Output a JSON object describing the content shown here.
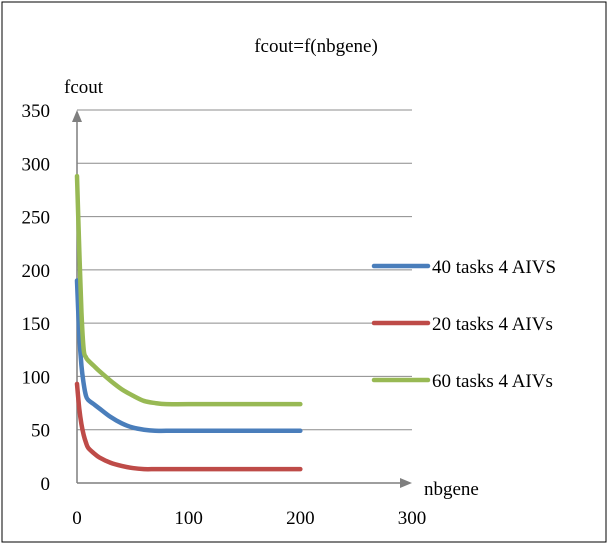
{
  "chart_data": {
    "type": "line",
    "title": "fcout=f(nbgene)",
    "xlabel": "nbgene",
    "ylabel": "fcout",
    "xlim": [
      0,
      300
    ],
    "ylim": [
      0,
      350
    ],
    "x_ticks": [
      "0",
      "100",
      "200",
      "300"
    ],
    "y_ticks": [
      "0",
      "50",
      "100",
      "150",
      "200",
      "250",
      "300",
      "350"
    ],
    "grid": "horizontal",
    "legend_position": "right",
    "series": [
      {
        "name": "40 tasks 4 AIVS",
        "color": "#4a7ebb",
        "x": [
          0,
          2,
          4,
          6,
          8,
          10,
          15,
          20,
          30,
          40,
          50,
          60,
          70,
          80,
          100,
          150,
          200
        ],
        "y": [
          190,
          140,
          110,
          93,
          82,
          78,
          74,
          70,
          62,
          56,
          52,
          50,
          49,
          49,
          49,
          49,
          49
        ]
      },
      {
        "name": "20 tasks 4 AIVs",
        "color": "#be4b48",
        "x": [
          0,
          2,
          4,
          6,
          8,
          10,
          15,
          20,
          30,
          40,
          50,
          60,
          70,
          80,
          100,
          150,
          200
        ],
        "y": [
          93,
          70,
          55,
          45,
          38,
          33,
          28,
          24,
          19,
          16,
          14,
          13,
          13,
          13,
          13,
          13,
          13
        ]
      },
      {
        "name": "60 tasks 4 AIVs",
        "color": "#98b954",
        "x": [
          0,
          2,
          4,
          6,
          8,
          10,
          15,
          20,
          30,
          40,
          50,
          60,
          70,
          80,
          100,
          150,
          200
        ],
        "y": [
          288,
          220,
          160,
          125,
          118,
          115,
          110,
          105,
          96,
          88,
          82,
          77,
          75,
          74,
          74,
          74,
          74
        ]
      }
    ]
  }
}
